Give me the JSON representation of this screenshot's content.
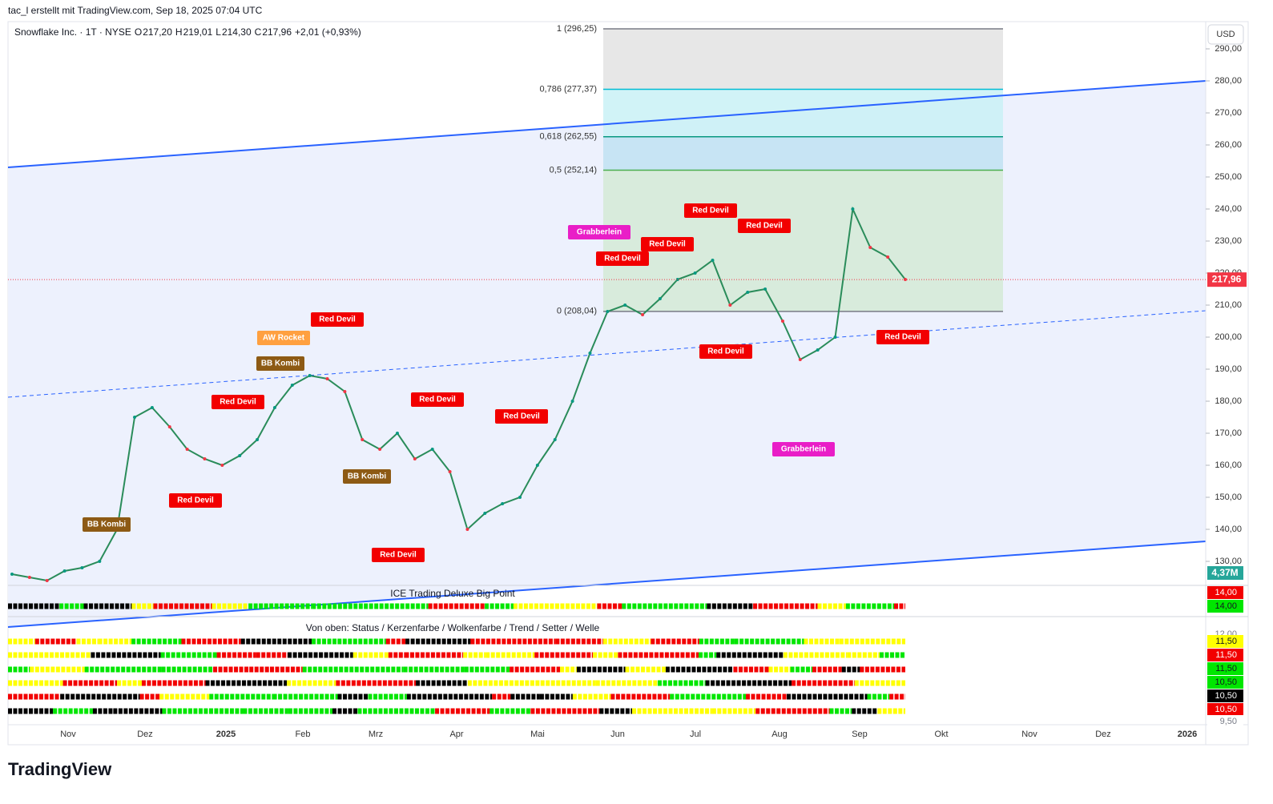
{
  "header": {
    "title": "tac_l erstellt mit TradingView.com, Sep 18, 2025 07:04 UTC",
    "brand": "TradingView"
  },
  "chart_data": {
    "type": "line",
    "legend": {
      "symbol": "Snowflake Inc. · 1T · NYSE",
      "ohlc": [
        {
          "label": "O",
          "value": "217,20"
        },
        {
          "label": "H",
          "value": "219,01"
        },
        {
          "label": "L",
          "value": "214,30"
        },
        {
          "label": "C",
          "value": "217,96"
        }
      ],
      "change": "+2,01 (+0,93%)"
    },
    "currency": "USD",
    "values": [
      126,
      125,
      124,
      127,
      128,
      130,
      140,
      175,
      178,
      172,
      165,
      162,
      160,
      163,
      168,
      178,
      185,
      188,
      187,
      183,
      168,
      165,
      170,
      162,
      165,
      158,
      140,
      145,
      148,
      150,
      160,
      168,
      180,
      195,
      208,
      210,
      207,
      212,
      218,
      220,
      224,
      210,
      214,
      215,
      205,
      193,
      196,
      200,
      240,
      228,
      225,
      218
    ],
    "color": "#2a8c5a",
    "ylim": [
      126,
      300
    ],
    "yticks": [
      {
        "value": 290,
        "label": "290,00"
      },
      {
        "value": 280,
        "label": "280,00"
      },
      {
        "value": 270,
        "label": "270,00"
      },
      {
        "value": 260,
        "label": "260,00"
      },
      {
        "value": 250,
        "label": "250,00"
      },
      {
        "value": 240,
        "label": "240,00"
      },
      {
        "value": 230,
        "label": "230,00"
      },
      {
        "value": 220,
        "label": "220,00"
      },
      {
        "value": 210,
        "label": "210,00"
      },
      {
        "value": 200,
        "label": "200,00"
      },
      {
        "value": 190,
        "label": "190,00"
      },
      {
        "value": 180,
        "label": "180,00"
      },
      {
        "value": 170,
        "label": "170,00"
      },
      {
        "value": 160,
        "label": "160,00"
      },
      {
        "value": 150,
        "label": "150,00"
      },
      {
        "value": 140,
        "label": "140,00"
      },
      {
        "value": 130,
        "label": "130,00"
      }
    ],
    "last_price": {
      "value": 217.96,
      "label": "217,96"
    },
    "volume_label": "4,37M",
    "fib_levels": [
      {
        "value": 296.25,
        "label": "1 (296,25)",
        "color": "#787b86"
      },
      {
        "value": 277.37,
        "label": "0,786 (277,37)",
        "color": "#00bcd4"
      },
      {
        "value": 262.55,
        "label": "0,618 (262,55)",
        "color": "#089981"
      },
      {
        "value": 252.14,
        "label": "0,5 (252,14)",
        "color": "#4caf50"
      },
      {
        "value": 208.04,
        "label": "0 (208,04)",
        "color": "#787b86"
      }
    ],
    "months": [
      "Nov",
      "Dez",
      "2025",
      "Feb",
      "Mrz",
      "Apr",
      "Mai",
      "Jun",
      "Jul",
      "Aug",
      "Sep",
      "Okt",
      "Nov",
      "Dez",
      "2026"
    ],
    "annotations": [
      {
        "text": "Red Devil",
        "color": "#f20000"
      },
      {
        "text": "Red Devil",
        "color": "#f20000"
      },
      {
        "text": "Red Devil",
        "color": "#f20000"
      },
      {
        "text": "Red Devil",
        "color": "#f20000"
      },
      {
        "text": "Red Devil",
        "color": "#f20000"
      },
      {
        "text": "Red Devil",
        "color": "#f20000"
      },
      {
        "text": "Red Devil",
        "color": "#f20000"
      },
      {
        "text": "Red Devil",
        "color": "#f20000"
      },
      {
        "text": "Red Devil",
        "color": "#f20000"
      },
      {
        "text": "Red Devil",
        "color": "#f20000"
      },
      {
        "text": "Red Devil",
        "color": "#f20000"
      },
      {
        "text": "Red Devil",
        "color": "#f20000"
      },
      {
        "text": "Grabberlein",
        "color": "#e91ec7"
      },
      {
        "text": "Grabberlein",
        "color": "#e91ec7"
      },
      {
        "text": "AW Rocket",
        "color": "#ffa040"
      },
      {
        "text": "BB Kombi",
        "color": "#8d5a14"
      },
      {
        "text": "BB Kombi",
        "color": "#8d5a14"
      },
      {
        "text": "BB Kombi",
        "color": "#8d5a14"
      }
    ]
  },
  "panels": [
    {
      "title": "ICE Trading Deluxe Big Point",
      "scale": [
        {
          "label": "14,00",
          "bg": "#f20000",
          "fg": "#fff"
        },
        {
          "label": "14,00",
          "bg": "#00e600",
          "fg": "#131722"
        }
      ]
    },
    {
      "title": "Von oben: Status / Kerzenfarbe / Wolkenfarbe / Trend / Setter / Welle",
      "scale": [
        {
          "label": "12,00",
          "bg": "#fff",
          "fg": "#787b86"
        },
        {
          "label": "11,50",
          "bg": "#ffff00",
          "fg": "#131722"
        },
        {
          "label": "11,50",
          "bg": "#f20000",
          "fg": "#fff"
        },
        {
          "label": "11,50",
          "bg": "#00e600",
          "fg": "#131722"
        },
        {
          "label": "10,50",
          "bg": "#00e600",
          "fg": "#131722"
        },
        {
          "label": "10,50",
          "bg": "#000",
          "fg": "#fff"
        },
        {
          "label": "10,50",
          "bg": "#f20000",
          "fg": "#fff"
        },
        {
          "label": "9,50",
          "bg": "#fff",
          "fg": "#787b86"
        }
      ]
    }
  ]
}
